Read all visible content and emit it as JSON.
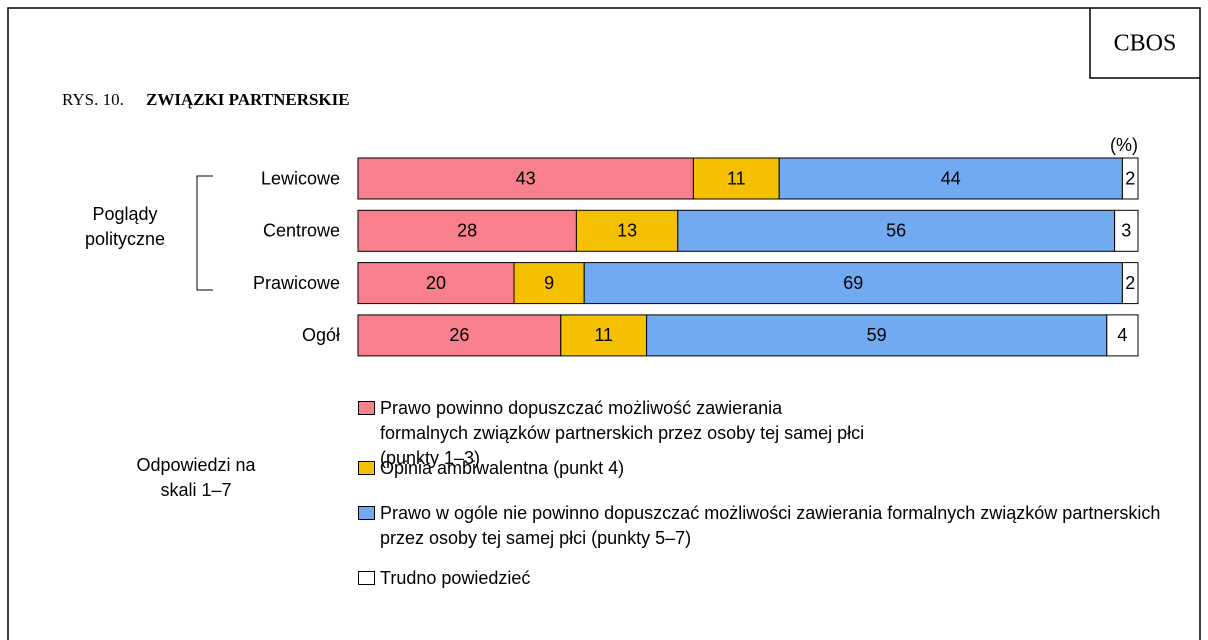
{
  "chart_data": {
    "type": "stacked_bar_horizontal",
    "brand": "CBOS",
    "figure_label": "RYS. 10.",
    "title": "ZWIĄZKI PARTNERSKIE",
    "unit_label": "(%)",
    "group_label": "Poglądy polityczne",
    "legend_title": "Odpowiedzi na skali 1–7",
    "categories": [
      "Lewicowe",
      "Centrowe",
      "Prawicowe",
      "Ogół"
    ],
    "xlim": [
      0,
      100
    ],
    "series": [
      {
        "name": "Prawo powinno dopuszczać możliwość zawierania formalnych związków partnerskich przez osoby tej samej płci (punkty 1–3)",
        "color": "#f77f8e",
        "values": [
          43,
          28,
          20,
          26
        ]
      },
      {
        "name": "Opinia ambiwalentna (punkt 4)",
        "color": "#f5c000",
        "values": [
          11,
          13,
          9,
          11
        ]
      },
      {
        "name": "Prawo w ogóle nie powinno dopuszczać możliwości zawierania formalnych związków partnerskich przez osoby tej samej płci (punkty 5–7)",
        "color": "#72aaf2",
        "values": [
          44,
          56,
          69,
          59
        ]
      },
      {
        "name": "Trudno powiedzieć",
        "color": "#ffffff",
        "values": [
          2,
          3,
          2,
          4
        ]
      }
    ]
  }
}
